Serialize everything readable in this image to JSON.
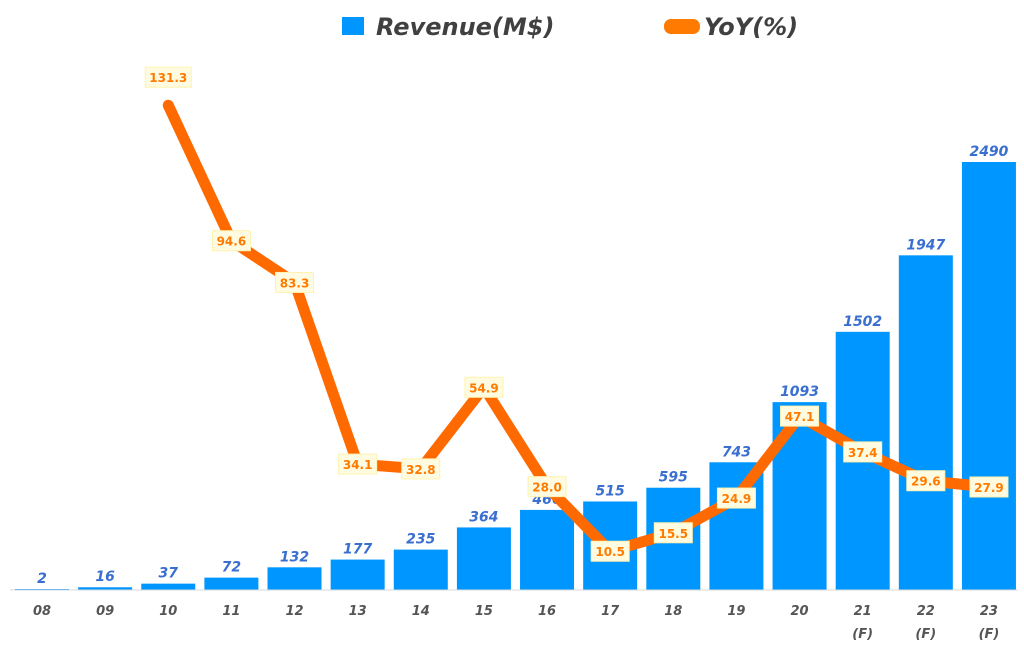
{
  "chart_data": {
    "type": "bar+line",
    "categories": [
      "08",
      "09",
      "10",
      "11",
      "12",
      "13",
      "14",
      "15",
      "16",
      "17",
      "18",
      "19",
      "20",
      "21",
      "22",
      "23"
    ],
    "category_sublabels": [
      "",
      "",
      "",
      "",
      "",
      "",
      "",
      "",
      "",
      "",
      "",
      "",
      "",
      "(F)",
      "(F)",
      "(F)"
    ],
    "series": [
      {
        "name": "Revenue(M$)",
        "type": "bar",
        "color": "#0096ff",
        "values": [
          2,
          16,
          37,
          72,
          132,
          177,
          235,
          364,
          466,
          515,
          595,
          743,
          1093,
          1502,
          1947,
          2490
        ]
      },
      {
        "name": "YoY(%)",
        "type": "line",
        "color": "#ff6a00",
        "values": [
          null,
          null,
          131.3,
          94.6,
          83.3,
          34.1,
          32.8,
          54.9,
          28.0,
          10.5,
          15.5,
          24.9,
          47.1,
          37.4,
          29.6,
          27.9
        ]
      }
    ],
    "legend_position": "top",
    "grid": false
  }
}
